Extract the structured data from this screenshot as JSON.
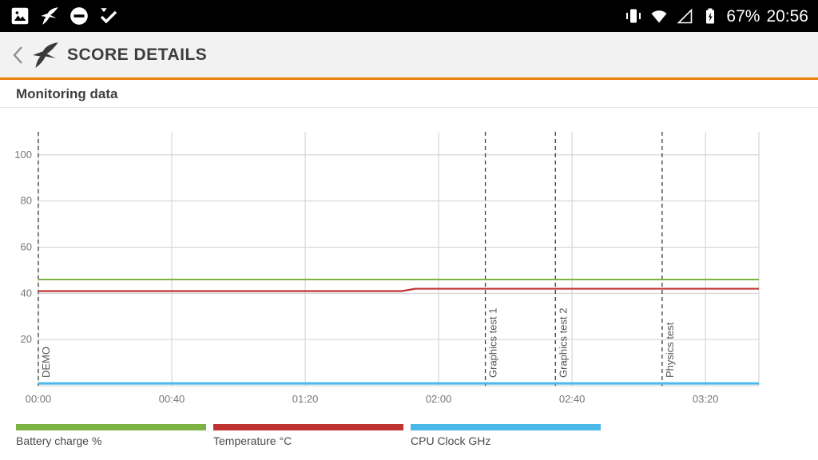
{
  "status_bar": {
    "time": "20:56",
    "battery_percent": "67%",
    "icons_left": [
      "screenshot-icon",
      "3dmark-notification-icon",
      "do-not-disturb-icon",
      "task-complete-icon"
    ],
    "icons_right": [
      "vibrate-icon",
      "wifi-icon",
      "cell-signal-empty-icon",
      "battery-charging-icon"
    ]
  },
  "header": {
    "title": "SCORE DETAILS",
    "icons": [
      "back-chevron-icon",
      "3dmark-logo-icon"
    ]
  },
  "section": {
    "title": "Monitoring data"
  },
  "colors": {
    "accent_orange": "#e8820d",
    "statusbar_bg": "#000000",
    "appbar_bg": "#f2f2f2"
  },
  "chart_data": {
    "type": "line",
    "title": "Monitoring data",
    "x_ticks": [
      "00:00",
      "00:40",
      "01:20",
      "02:00",
      "02:40",
      "03:20"
    ],
    "x_tick_interval_seconds": 40,
    "x_max_seconds": 216,
    "y_ticks": [
      20,
      40,
      60,
      80,
      100
    ],
    "ylim": [
      0,
      110
    ],
    "grid": true,
    "grid_color": "#cfcfcf",
    "axis_text_color": "#757575",
    "event_line_color": "#3a3a3a",
    "event_text_color": "#555555",
    "legend_position": "bottom",
    "series": [
      {
        "name": "Battery charge %",
        "color": "#7cb342",
        "width": 2,
        "points": [
          [
            0,
            46
          ],
          [
            216,
            46
          ]
        ]
      },
      {
        "name": "Temperature °C",
        "color": "#be3330",
        "width": 2.2,
        "points": [
          [
            0,
            41
          ],
          [
            109,
            41
          ],
          [
            113,
            42
          ],
          [
            216,
            42
          ]
        ]
      },
      {
        "name": "CPU Clock GHz",
        "color": "#4ab8e8",
        "width": 3,
        "points": [
          [
            0,
            1
          ],
          [
            216,
            1
          ]
        ]
      }
    ],
    "events": [
      {
        "label": "DEMO",
        "time_seconds": 0
      },
      {
        "label": "Graphics test 1",
        "time_seconds": 134
      },
      {
        "label": "Graphics test 2",
        "time_seconds": 155
      },
      {
        "label": "Physics test",
        "time_seconds": 187
      }
    ]
  }
}
